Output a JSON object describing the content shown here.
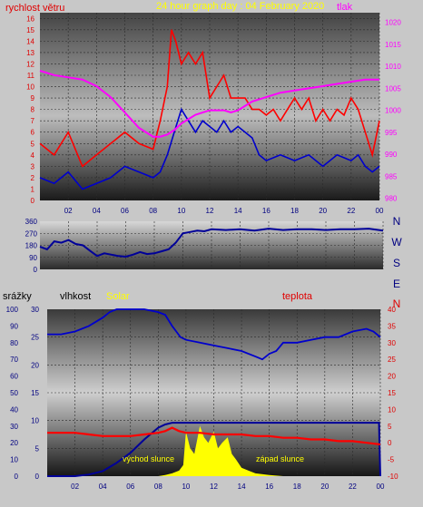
{
  "chart_data": [
    {
      "type": "line",
      "title": "24 hour graph day : 04 February 2020",
      "left_label": "rychlost větru",
      "right_label": "tlak",
      "y_ticks": [
        "0",
        "1",
        "2",
        "3",
        "4",
        "5",
        "6",
        "7",
        "8",
        "9",
        "10",
        "11",
        "12",
        "13",
        "14",
        "15",
        "16"
      ],
      "ylim": [
        0,
        16.5
      ],
      "y2_ticks": [
        "980",
        "985",
        "990",
        "995",
        "1000",
        "1005",
        "1010",
        "1015",
        "1020"
      ],
      "y2lim": [
        979.5,
        1022.2
      ],
      "x_ticks": [
        "02",
        "04",
        "06",
        "08",
        "10",
        "12",
        "14",
        "16",
        "18",
        "20",
        "22",
        "00"
      ],
      "xlim": [
        0,
        24
      ],
      "grid": true,
      "colors": {
        "wind_gust": "#ff0000",
        "wind_avg": "#0000cc",
        "pressure": "#ff00ff"
      },
      "series": [
        {
          "name": "wind_gust",
          "x": [
            0,
            1,
            2,
            3,
            4,
            5,
            6,
            7,
            8,
            8.5,
            9,
            9.3,
            9.6,
            10,
            10.5,
            11,
            11.5,
            12,
            12.5,
            13,
            13.5,
            14,
            14.5,
            15,
            15.5,
            16,
            16.5,
            17,
            17.5,
            18,
            18.5,
            19,
            19.5,
            20,
            20.5,
            21,
            21.5,
            22,
            22.5,
            23,
            23.5,
            24
          ],
          "y": [
            5,
            4,
            6,
            3,
            4,
            5,
            6,
            5,
            4.5,
            7,
            10,
            15,
            14,
            12,
            13,
            12,
            13,
            9,
            10,
            11,
            9,
            9,
            9,
            8,
            8,
            7.5,
            8,
            7,
            8,
            9,
            8,
            9,
            7,
            8,
            7,
            8,
            7.5,
            9,
            8,
            6,
            4,
            7
          ]
        },
        {
          "name": "wind_avg",
          "x": [
            0,
            1,
            2,
            3,
            4,
            5,
            6,
            7,
            8,
            8.5,
            9,
            9.5,
            10,
            10.5,
            11,
            11.5,
            12,
            12.5,
            13,
            13.5,
            14,
            14.5,
            15,
            15.5,
            16,
            17,
            18,
            19,
            20,
            21,
            22,
            22.5,
            23,
            23.5,
            24
          ],
          "y": [
            2,
            1.5,
            2.5,
            1,
            1.5,
            2,
            3,
            2.5,
            2,
            2.5,
            4,
            6,
            8,
            7,
            6,
            7,
            6.5,
            6,
            7,
            6,
            6.5,
            6,
            5.5,
            4,
            3.5,
            4,
            3.5,
            4,
            3,
            4,
            3.5,
            4,
            3,
            2.5,
            3
          ]
        },
        {
          "name": "pressure",
          "x": [
            0,
            1,
            2,
            3,
            4,
            5,
            6,
            7,
            7.5,
            8,
            8.5,
            9,
            9.5,
            10,
            11,
            12,
            13,
            13.5,
            14,
            15,
            16,
            17,
            18,
            19,
            20,
            21,
            22,
            23,
            24
          ],
          "y": [
            1009,
            1008,
            1007.5,
            1007,
            1005.5,
            1003,
            999.5,
            996,
            995,
            994,
            994,
            994.5,
            995.5,
            997,
            999,
            1000,
            1000,
            999.5,
            1000,
            1002,
            1003,
            1004,
            1004.5,
            1005,
            1005.5,
            1006,
            1006.5,
            1007,
            1007
          ]
        }
      ]
    },
    {
      "type": "line",
      "y_ticks": [
        "0",
        "90",
        "180",
        "270",
        "360"
      ],
      "ylim": [
        0,
        360
      ],
      "direction_labels": [
        "N",
        "W",
        "S",
        "E",
        "N"
      ],
      "x_ticks": [
        "02",
        "04",
        "06",
        "08",
        "10",
        "12",
        "14",
        "16",
        "18",
        "20",
        "22",
        "00"
      ],
      "xlim": [
        0,
        24
      ],
      "colors": {
        "wind_direction": "#000099"
      },
      "series": [
        {
          "name": "wind_direction",
          "x": [
            0,
            0.5,
            1,
            1.5,
            2,
            2.5,
            3,
            3.5,
            4,
            4.5,
            5,
            5.5,
            6,
            6.5,
            7,
            7.5,
            8,
            8.5,
            9,
            9.5,
            10,
            10.5,
            11,
            11.5,
            12,
            13,
            14,
            15,
            16,
            17,
            18,
            19,
            20,
            21,
            22,
            23,
            24
          ],
          "y": [
            170,
            150,
            210,
            200,
            220,
            190,
            180,
            140,
            100,
            120,
            110,
            100,
            95,
            110,
            130,
            115,
            120,
            135,
            150,
            200,
            270,
            280,
            290,
            285,
            300,
            295,
            300,
            290,
            305,
            295,
            300,
            300,
            295,
            300,
            300,
            305,
            290
          ]
        }
      ]
    },
    {
      "type": "line",
      "left_labels": [
        "srážky",
        "vlhkost",
        "Solar"
      ],
      "right_label": "teplota",
      "annotations": [
        "východ slunce",
        "západ slunce"
      ],
      "y_ticks_precip": [
        "0",
        "10",
        "20",
        "30",
        "40",
        "50",
        "60",
        "70",
        "80",
        "90",
        "100"
      ],
      "y_ticks_humidity": [
        "0",
        "5",
        "10",
        "15",
        "20",
        "25",
        "30"
      ],
      "y2_ticks": [
        "-10",
        "-5",
        "0",
        "5",
        "10",
        "15",
        "20",
        "25",
        "30",
        "35",
        "40"
      ],
      "humidity_lim": [
        0,
        30
      ],
      "temp_lim": [
        -10,
        40
      ],
      "x_ticks": [
        "02",
        "04",
        "06",
        "08",
        "10",
        "12",
        "14",
        "16",
        "18",
        "20",
        "22",
        "00"
      ],
      "xlim": [
        0,
        24
      ],
      "colors": {
        "humidity": "#0000cc",
        "temperature": "#ff0000",
        "precipitation": "#000099",
        "solar": "#ffff00"
      },
      "series": [
        {
          "name": "humidity",
          "x": [
            0,
            1,
            2,
            3,
            4,
            4.5,
            5,
            6,
            7,
            8,
            8.5,
            9,
            9.3,
            9.6,
            10,
            11,
            12,
            13,
            14,
            15,
            15.5,
            16,
            16.5,
            17,
            18,
            19,
            20,
            21,
            22,
            23,
            23.5,
            24
          ],
          "y": [
            25.5,
            25.5,
            26,
            27,
            28.5,
            29.5,
            30,
            30,
            30,
            29.5,
            29,
            27,
            26,
            25,
            24.5,
            24,
            23.5,
            23,
            22.5,
            21.5,
            21,
            22,
            22.5,
            24,
            24,
            24.5,
            25,
            25,
            26,
            26.5,
            26,
            25
          ]
        },
        {
          "name": "temperature",
          "x": [
            0,
            1,
            2,
            3,
            4,
            5,
            6,
            7,
            8,
            8.5,
            9,
            9.5,
            10,
            11,
            12,
            13,
            14,
            15,
            16,
            17,
            18,
            19,
            20,
            21,
            22,
            23,
            24
          ],
          "y": [
            3,
            3,
            3,
            2.5,
            2,
            2,
            2,
            2.5,
            3,
            3.5,
            4.5,
            3.5,
            3,
            3,
            2.5,
            2.5,
            2.5,
            2,
            2,
            1.5,
            1.5,
            1,
            1,
            0.5,
            0.5,
            0,
            -0.5
          ]
        },
        {
          "name": "precipitation",
          "x": [
            0,
            2,
            3,
            4,
            5,
            6,
            7,
            8,
            8.5,
            9,
            10,
            12,
            14,
            16,
            18,
            20,
            22,
            23.9,
            24
          ],
          "y": [
            0,
            0,
            1,
            3,
            8,
            14,
            22,
            29,
            31,
            32,
            32,
            32,
            32,
            32,
            32,
            32,
            32,
            32,
            0
          ]
        },
        {
          "name": "solar",
          "x": [
            8,
            8.5,
            9,
            9.5,
            9.8,
            10,
            10.3,
            10.6,
            11,
            11.3,
            11.6,
            12,
            12.3,
            12.6,
            13,
            13.3,
            13.6,
            14,
            14.5,
            15,
            16,
            17
          ],
          "y": [
            0,
            0.2,
            0.5,
            1,
            2,
            8,
            5,
            4,
            9,
            7,
            6,
            8,
            5,
            6,
            7,
            4,
            3,
            1.5,
            1,
            0.5,
            0.2,
            0
          ]
        }
      ]
    }
  ]
}
